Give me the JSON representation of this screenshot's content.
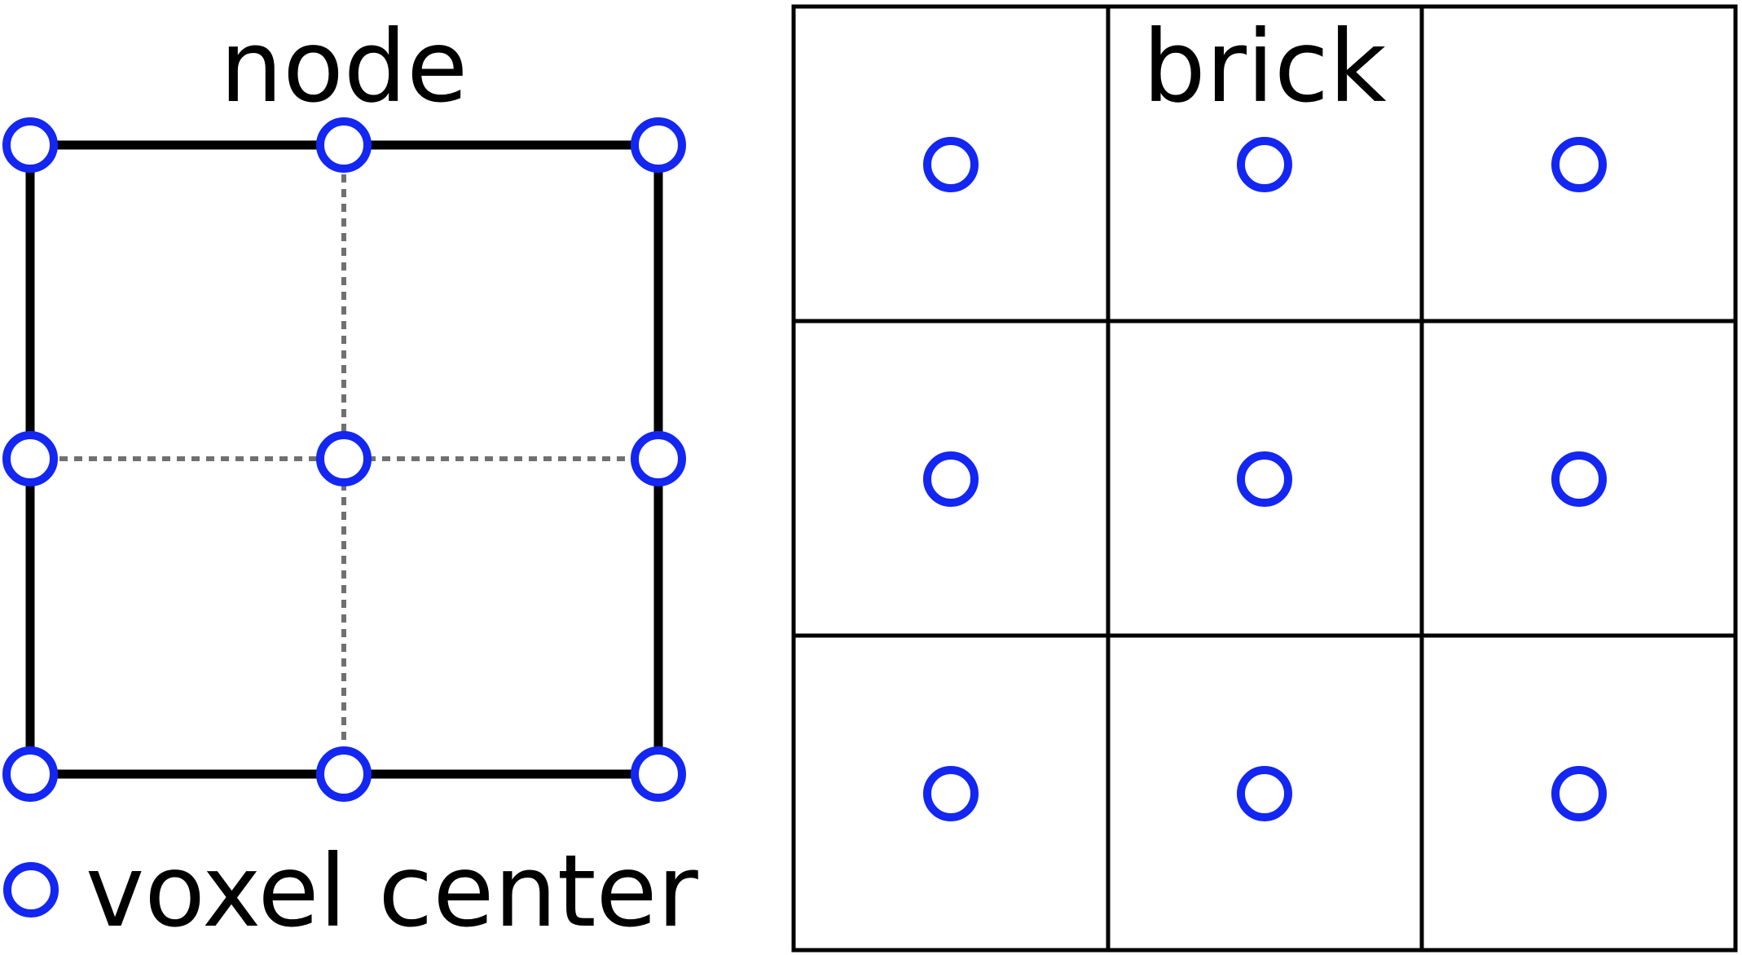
{
  "node_panel": {
    "title": "node"
  },
  "brick_panel": {
    "title": "brick",
    "rows": 3,
    "cols": 3
  },
  "legend": {
    "label": "voxel center",
    "marker_icon": "hollow-circle-icon"
  },
  "colors": {
    "voxel_marker": "#1326f2",
    "frame": "#000000",
    "subdivision": "#707070",
    "background": "#ffffff"
  }
}
